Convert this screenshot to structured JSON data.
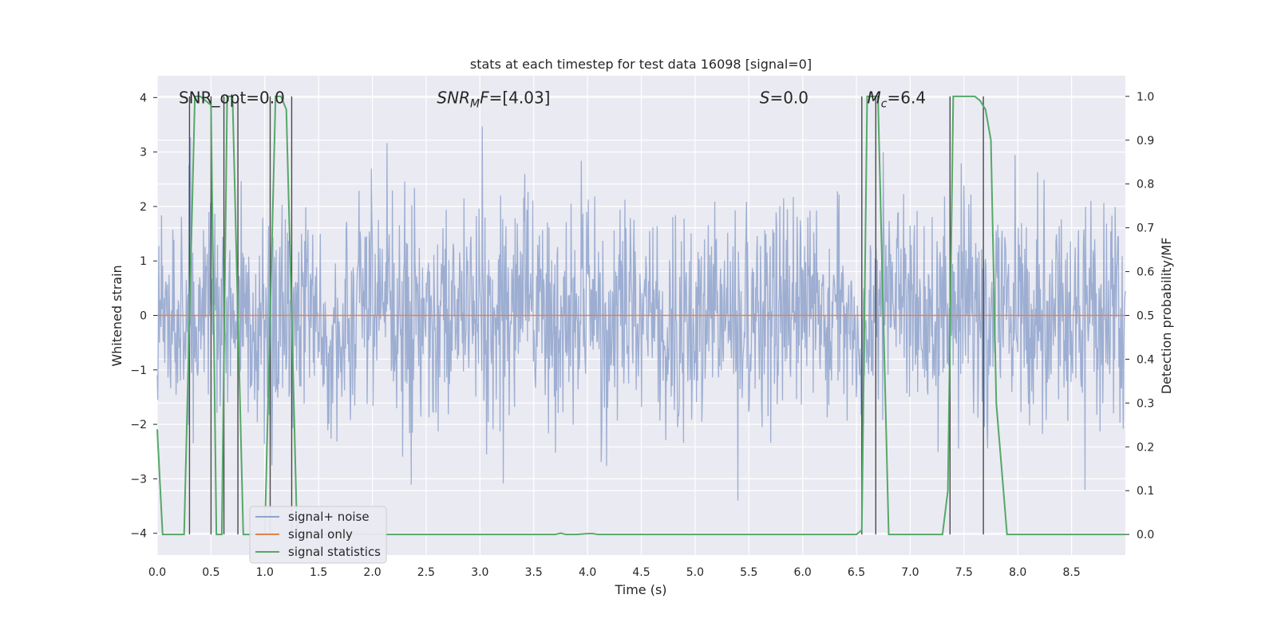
{
  "chart_data": {
    "type": "line",
    "title": "stats at each timestep for test data 16098 [signal=0]",
    "xlabel": "Time (s)",
    "ylabel": "Whitened strain",
    "y2label": "Detection probability/MF",
    "xlim": [
      0.0,
      9.0
    ],
    "ylim": [
      -4.4,
      4.4
    ],
    "y2lim": [
      -0.047,
      1.047
    ],
    "xticks": [
      "0.0",
      "0.5",
      "1.0",
      "1.5",
      "2.0",
      "2.5",
      "3.0",
      "3.5",
      "4.0",
      "4.5",
      "5.0",
      "5.5",
      "6.0",
      "6.5",
      "7.0",
      "7.5",
      "8.0",
      "8.5"
    ],
    "yticks": [
      "−4",
      "−3",
      "−2",
      "−1",
      "0",
      "1",
      "2",
      "3",
      "4"
    ],
    "y2ticks": [
      "0.0",
      "0.1",
      "0.2",
      "0.3",
      "0.4",
      "0.5",
      "0.6",
      "0.7",
      "0.8",
      "0.9",
      "1.0"
    ],
    "grid": true,
    "legend_position": "lower-left",
    "colors": {
      "background": "#eaeaf2",
      "grid": "#ffffff",
      "noise": "#8fa3cc",
      "signal": "#dd8452",
      "stats": "#55a868",
      "markers": "#4a4a4a"
    },
    "annotations": [
      {
        "id": "snr-opt",
        "x": 0.2,
        "y": 4.0,
        "parts": [
          {
            "t": "SNR_opt=0.0",
            "i": false
          }
        ]
      },
      {
        "id": "snr-mf",
        "x": 2.6,
        "y": 4.0,
        "parts": [
          {
            "t": "SNR",
            "i": true
          },
          {
            "t": "M",
            "i": true,
            "sub": true
          },
          {
            "t": "F",
            "i": true
          },
          {
            "t": "=[4.03]",
            "i": false
          }
        ]
      },
      {
        "id": "s-value",
        "x": 5.6,
        "y": 4.0,
        "parts": [
          {
            "t": "S",
            "i": true
          },
          {
            "t": "=0.0",
            "i": false
          }
        ]
      },
      {
        "id": "mc-value",
        "x": 6.6,
        "y": 4.0,
        "parts": [
          {
            "t": "M",
            "i": true
          },
          {
            "t": "c",
            "i": true,
            "sub": true
          },
          {
            "t": "=6.4",
            "i": false
          }
        ]
      }
    ],
    "series": [
      {
        "name": "signal+ noise",
        "kind": "noise",
        "n": 1800,
        "amplitude": 1.0,
        "x": [
          0.0,
          9.0
        ]
      },
      {
        "name": "signal only",
        "kind": "line",
        "x": [
          0.0,
          9.0
        ],
        "y": [
          0.0,
          0.0
        ]
      },
      {
        "name": "signal statistics",
        "kind": "line",
        "axis": "right",
        "x": [
          0.0,
          0.05,
          0.25,
          0.3,
          0.35,
          0.4,
          0.45,
          0.5,
          0.55,
          0.6,
          0.65,
          0.7,
          0.75,
          0.8,
          0.85,
          0.9,
          0.95,
          1.0,
          1.05,
          1.1,
          1.15,
          1.2,
          1.25,
          1.3,
          1.35,
          1.4,
          1.5,
          2.0,
          2.5,
          3.0,
          3.5,
          3.7,
          3.75,
          3.8,
          3.9,
          4.0,
          4.05,
          4.1,
          4.5,
          5.0,
          5.2,
          5.5,
          6.0,
          6.5,
          6.55,
          6.6,
          6.65,
          6.7,
          6.75,
          6.8,
          6.85,
          7.0,
          7.3,
          7.35,
          7.4,
          7.45,
          7.5,
          7.6,
          7.65,
          7.7,
          7.75,
          7.8,
          7.9,
          8.0,
          8.5,
          9.0
        ],
        "y": [
          0.24,
          0.0,
          0.0,
          0.5,
          1.0,
          1.0,
          0.99,
          0.98,
          0.0,
          0.0,
          1.0,
          1.0,
          0.5,
          0.0,
          0.0,
          0.0,
          0.0,
          0.0,
          0.5,
          1.0,
          1.0,
          0.97,
          0.5,
          0.0,
          0.0,
          0.0,
          0.0,
          0.0,
          0.0,
          0.0,
          0.0,
          0.0,
          0.003,
          0.0,
          0.0,
          0.002,
          0.002,
          0.0,
          0.0,
          0.0,
          0.0,
          0.0,
          0.0,
          0.0,
          0.01,
          1.0,
          1.0,
          1.0,
          0.5,
          0.0,
          0.0,
          0.0,
          0.0,
          0.1,
          1.0,
          1.0,
          1.0,
          1.0,
          0.99,
          0.97,
          0.9,
          0.3,
          0.0,
          0.0,
          0.0,
          0.0
        ]
      }
    ],
    "vlines": [
      0.3,
      0.5,
      0.62,
      0.75,
      1.05,
      1.25,
      6.55,
      6.68,
      7.37,
      7.68
    ]
  }
}
